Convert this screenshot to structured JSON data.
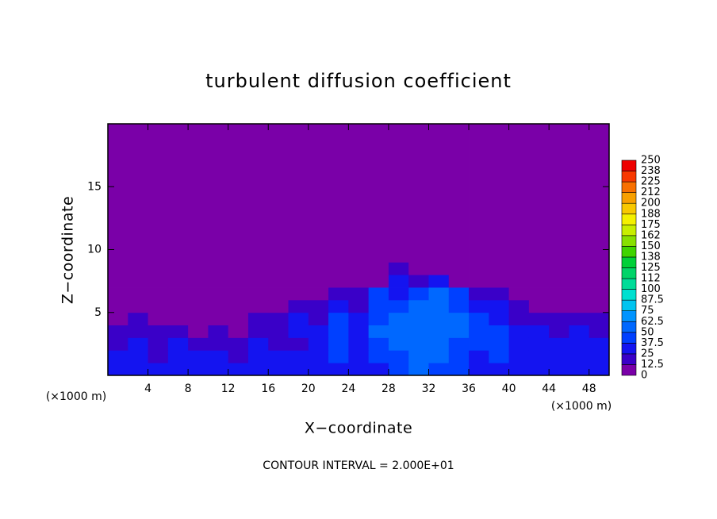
{
  "chart_data": {
    "type": "contour",
    "title": "turbulent diffusion coefficient",
    "x_label": "X−coordinate",
    "y_label": "Z−coordinate",
    "x_unit": "(×1000 m)",
    "y_unit": "(×1000 m)",
    "annotation": "CONTOUR INTERVAL = 2.000E+01",
    "xlim": [
      0,
      50
    ],
    "ylim": [
      0,
      20
    ],
    "xticks": [
      4,
      8,
      12,
      16,
      20,
      24,
      28,
      32,
      36,
      40,
      44,
      48
    ],
    "yticks": [
      5,
      10,
      15
    ],
    "x_edges": [
      0,
      2,
      4,
      6,
      8,
      10,
      12,
      14,
      16,
      18,
      20,
      22,
      24,
      26,
      28,
      30,
      32,
      34,
      36,
      38,
      40,
      42,
      44,
      46,
      48,
      50
    ],
    "z_edges": [
      0,
      1,
      2,
      3,
      4,
      5,
      6,
      7,
      8,
      9,
      10,
      20
    ],
    "values": [
      [
        30,
        30,
        25,
        35,
        30,
        30,
        25,
        30,
        35,
        30,
        35,
        35,
        30,
        35,
        40,
        50,
        45,
        40,
        35,
        35,
        30,
        30,
        30,
        30,
        30
      ],
      [
        25,
        30,
        20,
        35,
        30,
        25,
        20,
        35,
        30,
        25,
        30,
        40,
        30,
        45,
        45,
        55,
        50,
        40,
        35,
        40,
        30,
        35,
        30,
        30,
        25
      ],
      [
        20,
        25,
        15,
        30,
        20,
        20,
        15,
        25,
        20,
        20,
        30,
        40,
        35,
        45,
        50,
        60,
        55,
        45,
        40,
        45,
        35,
        30,
        30,
        35,
        30
      ],
      [
        15,
        15,
        20,
        15,
        10,
        15,
        10,
        20,
        15,
        25,
        25,
        45,
        30,
        50,
        55,
        60,
        55,
        50,
        45,
        40,
        30,
        25,
        20,
        25,
        20
      ],
      [
        10,
        20,
        10,
        5,
        5,
        10,
        5,
        15,
        20,
        25,
        20,
        40,
        25,
        45,
        50,
        55,
        60,
        50,
        40,
        35,
        20,
        15,
        20,
        15,
        15
      ],
      [
        5,
        5,
        0,
        0,
        0,
        0,
        0,
        5,
        10,
        20,
        15,
        25,
        20,
        45,
        40,
        50,
        55,
        45,
        35,
        25,
        15,
        10,
        10,
        5,
        5
      ],
      [
        0,
        0,
        0,
        0,
        0,
        0,
        0,
        0,
        0,
        5,
        10,
        15,
        15,
        40,
        35,
        45,
        50,
        40,
        20,
        15,
        5,
        5,
        0,
        0,
        0
      ],
      [
        0,
        0,
        0,
        0,
        0,
        0,
        0,
        0,
        0,
        0,
        0,
        0,
        0,
        0,
        30,
        20,
        30,
        10,
        0,
        0,
        0,
        0,
        0,
        0,
        0
      ],
      [
        0,
        0,
        0,
        0,
        0,
        0,
        0,
        0,
        0,
        0,
        0,
        0,
        0,
        0,
        20,
        10,
        0,
        0,
        0,
        0,
        0,
        0,
        0,
        0,
        0
      ],
      [
        0,
        0,
        0,
        0,
        0,
        0,
        0,
        0,
        0,
        0,
        0,
        0,
        0,
        0,
        10,
        0,
        0,
        0,
        0,
        0,
        0,
        0,
        0,
        0,
        0
      ],
      [
        0,
        0,
        0,
        0,
        0,
        0,
        0,
        0,
        0,
        0,
        0,
        0,
        0,
        0,
        0,
        0,
        0,
        0,
        0,
        0,
        0,
        0,
        0,
        0,
        0
      ]
    ],
    "colorbar": {
      "levels": [
        0,
        12.5,
        25,
        37.5,
        50,
        62.5,
        75,
        87.5,
        100,
        {
          "value": 112.5,
          "label": "112"
        },
        125,
        {
          "value": 137.5,
          "label": "138"
        },
        150,
        {
          "value": 162.5,
          "label": "162"
        },
        175,
        {
          "value": 187.5,
          "label": "188"
        },
        200,
        {
          "value": 212.5,
          "label": "212"
        },
        225,
        {
          "value": 237.5,
          "label": "238"
        },
        250
      ],
      "colors": [
        "#7a00a8",
        "#3a00c8",
        "#1414f0",
        "#0040ff",
        "#0068ff",
        "#0094ff",
        "#00c4f0",
        "#00e0d0",
        "#00dc98",
        "#00d468",
        "#00d038",
        "#40d400",
        "#88e000",
        "#c8ee00",
        "#f4f000",
        "#f8c800",
        "#f8a000",
        "#f87000",
        "#f83800",
        "#ee0000",
        "#f08888"
      ]
    }
  }
}
